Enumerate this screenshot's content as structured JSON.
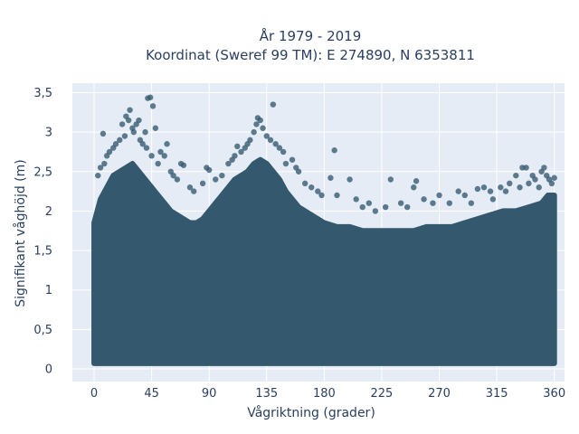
{
  "chart_data": {
    "type": "scatter",
    "title": "År 1979 - 2019",
    "subtitle": "Koordinat (Sweref 99 TM): E 274890, N 6353811",
    "xlabel": "Vågriktning (grader)",
    "ylabel": "Signifikant våghöjd (m)",
    "xlim": [
      -17,
      368
    ],
    "ylim": [
      -0.16,
      3.62
    ],
    "xticks": [
      0,
      45,
      90,
      135,
      180,
      225,
      270,
      315,
      360
    ],
    "xtick_labels": [
      "0",
      "45",
      "90",
      "135",
      "180",
      "225",
      "270",
      "315",
      "360"
    ],
    "yticks": [
      0,
      0.5,
      1,
      1.5,
      2,
      2.5,
      3,
      3.5
    ],
    "ytick_labels": [
      "0",
      "0,5",
      "1",
      "1,5",
      "2",
      "2,5",
      "3",
      "3,5"
    ],
    "grid": true,
    "legend": "none",
    "marker_color": "#34586e",
    "background_color": "#e5ecf6",
    "series": [
      {
        "dense_envelope": [
          [
            0,
            1.85
          ],
          [
            5,
            2.15
          ],
          [
            10,
            2.3
          ],
          [
            15,
            2.45
          ],
          [
            20,
            2.5
          ],
          [
            25,
            2.55
          ],
          [
            30,
            2.6
          ],
          [
            35,
            2.5
          ],
          [
            40,
            2.4
          ],
          [
            45,
            2.3
          ],
          [
            50,
            2.2
          ],
          [
            55,
            2.1
          ],
          [
            60,
            2.0
          ],
          [
            65,
            1.95
          ],
          [
            70,
            1.9
          ],
          [
            75,
            1.85
          ],
          [
            80,
            1.85
          ],
          [
            85,
            1.9
          ],
          [
            90,
            2.0
          ],
          [
            95,
            2.1
          ],
          [
            100,
            2.2
          ],
          [
            105,
            2.3
          ],
          [
            110,
            2.4
          ],
          [
            115,
            2.45
          ],
          [
            120,
            2.5
          ],
          [
            125,
            2.6
          ],
          [
            130,
            2.65
          ],
          [
            135,
            2.6
          ],
          [
            140,
            2.5
          ],
          [
            145,
            2.4
          ],
          [
            150,
            2.25
          ],
          [
            155,
            2.15
          ],
          [
            160,
            2.05
          ],
          [
            165,
            2.0
          ],
          [
            170,
            1.95
          ],
          [
            175,
            1.9
          ],
          [
            180,
            1.85
          ],
          [
            190,
            1.8
          ],
          [
            200,
            1.8
          ],
          [
            210,
            1.75
          ],
          [
            220,
            1.75
          ],
          [
            230,
            1.75
          ],
          [
            240,
            1.75
          ],
          [
            250,
            1.75
          ],
          [
            260,
            1.8
          ],
          [
            270,
            1.8
          ],
          [
            280,
            1.8
          ],
          [
            290,
            1.85
          ],
          [
            300,
            1.9
          ],
          [
            310,
            1.95
          ],
          [
            320,
            2.0
          ],
          [
            330,
            2.0
          ],
          [
            340,
            2.05
          ],
          [
            350,
            2.1
          ],
          [
            355,
            2.2
          ],
          [
            360,
            2.2
          ]
        ],
        "points": [
          [
            3,
            2.45
          ],
          [
            5,
            2.55
          ],
          [
            7,
            2.98
          ],
          [
            8,
            2.6
          ],
          [
            10,
            2.7
          ],
          [
            12,
            2.75
          ],
          [
            15,
            2.8
          ],
          [
            17,
            2.85
          ],
          [
            20,
            2.9
          ],
          [
            22,
            3.1
          ],
          [
            24,
            2.95
          ],
          [
            25,
            3.2
          ],
          [
            27,
            3.15
          ],
          [
            28,
            3.28
          ],
          [
            30,
            3.05
          ],
          [
            31,
            3.0
          ],
          [
            33,
            3.1
          ],
          [
            35,
            3.15
          ],
          [
            36,
            2.9
          ],
          [
            38,
            2.85
          ],
          [
            40,
            3.0
          ],
          [
            41,
            2.8
          ],
          [
            42,
            3.43
          ],
          [
            44,
            3.44
          ],
          [
            45,
            2.7
          ],
          [
            46,
            3.33
          ],
          [
            48,
            3.05
          ],
          [
            50,
            2.6
          ],
          [
            52,
            2.75
          ],
          [
            55,
            2.7
          ],
          [
            57,
            2.85
          ],
          [
            60,
            2.5
          ],
          [
            62,
            2.45
          ],
          [
            65,
            2.4
          ],
          [
            68,
            2.6
          ],
          [
            70,
            2.58
          ],
          [
            75,
            2.3
          ],
          [
            78,
            2.25
          ],
          [
            85,
            2.35
          ],
          [
            88,
            2.55
          ],
          [
            90,
            2.52
          ],
          [
            95,
            2.4
          ],
          [
            100,
            2.45
          ],
          [
            105,
            2.6
          ],
          [
            108,
            2.65
          ],
          [
            110,
            2.7
          ],
          [
            112,
            2.82
          ],
          [
            115,
            2.75
          ],
          [
            118,
            2.8
          ],
          [
            120,
            2.85
          ],
          [
            122,
            2.9
          ],
          [
            125,
            3.0
          ],
          [
            127,
            3.1
          ],
          [
            128,
            3.18
          ],
          [
            130,
            3.15
          ],
          [
            132,
            3.05
          ],
          [
            135,
            2.95
          ],
          [
            138,
            2.9
          ],
          [
            140,
            3.35
          ],
          [
            142,
            2.85
          ],
          [
            145,
            2.8
          ],
          [
            148,
            2.75
          ],
          [
            150,
            2.6
          ],
          [
            155,
            2.65
          ],
          [
            158,
            2.55
          ],
          [
            160,
            2.5
          ],
          [
            165,
            2.35
          ],
          [
            170,
            2.3
          ],
          [
            175,
            2.25
          ],
          [
            178,
            2.2
          ],
          [
            185,
            2.42
          ],
          [
            188,
            2.77
          ],
          [
            190,
            2.2
          ],
          [
            200,
            2.4
          ],
          [
            205,
            2.15
          ],
          [
            210,
            2.05
          ],
          [
            215,
            2.1
          ],
          [
            220,
            2.0
          ],
          [
            228,
            2.05
          ],
          [
            232,
            2.4
          ],
          [
            240,
            2.1
          ],
          [
            245,
            2.05
          ],
          [
            250,
            2.3
          ],
          [
            252,
            2.38
          ],
          [
            258,
            2.15
          ],
          [
            265,
            2.1
          ],
          [
            270,
            2.2
          ],
          [
            278,
            2.1
          ],
          [
            285,
            2.25
          ],
          [
            290,
            2.2
          ],
          [
            295,
            2.1
          ],
          [
            300,
            2.28
          ],
          [
            305,
            2.3
          ],
          [
            310,
            2.25
          ],
          [
            312,
            2.15
          ],
          [
            318,
            2.3
          ],
          [
            322,
            2.25
          ],
          [
            325,
            2.35
          ],
          [
            330,
            2.45
          ],
          [
            333,
            2.3
          ],
          [
            335,
            2.55
          ],
          [
            338,
            2.55
          ],
          [
            340,
            2.35
          ],
          [
            343,
            2.45
          ],
          [
            345,
            2.4
          ],
          [
            348,
            2.3
          ],
          [
            350,
            2.5
          ],
          [
            352,
            2.55
          ],
          [
            354,
            2.45
          ],
          [
            356,
            2.4
          ],
          [
            358,
            2.35
          ],
          [
            360,
            2.42
          ]
        ]
      }
    ]
  }
}
